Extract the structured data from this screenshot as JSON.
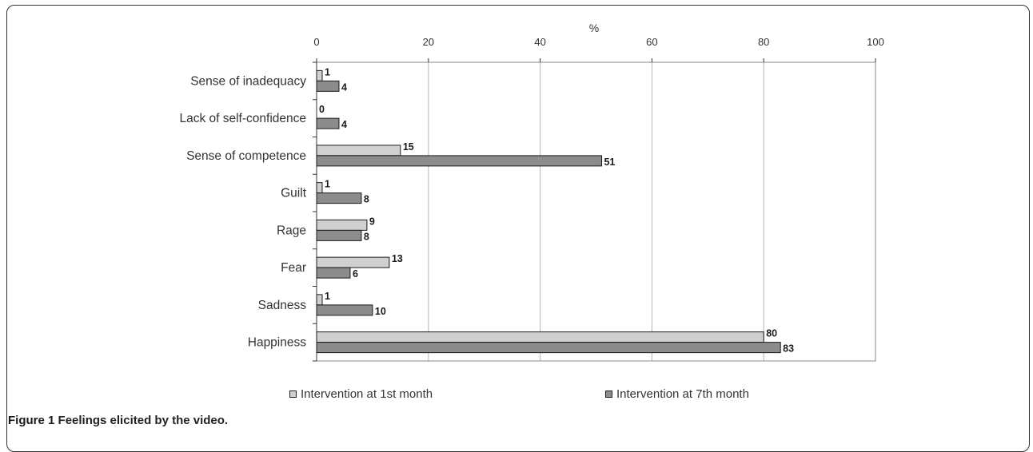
{
  "figure": {
    "label": "Figure 1",
    "caption": "Feelings elicited by the video."
  },
  "chart_data": {
    "type": "bar",
    "orientation": "horizontal",
    "title": "",
    "xlabel": "%",
    "ylabel": "",
    "xlim": [
      0,
      100
    ],
    "x_ticks": [
      0,
      20,
      40,
      60,
      80,
      100
    ],
    "grid": true,
    "legend_position": "bottom",
    "categories": [
      "Sense of inadequacy",
      "Lack of self-confidence",
      "Sense of competence",
      "Guilt",
      "Rage",
      "Fear",
      "Sadness",
      "Happiness"
    ],
    "series": [
      {
        "name": "Intervention at 1st month",
        "color": "#d0d0d0",
        "values": [
          1,
          0,
          15,
          1,
          9,
          13,
          1,
          80
        ]
      },
      {
        "name": "Intervention at 7th month",
        "color": "#8c8c8c",
        "values": [
          4,
          4,
          51,
          8,
          8,
          6,
          10,
          83
        ]
      }
    ]
  }
}
